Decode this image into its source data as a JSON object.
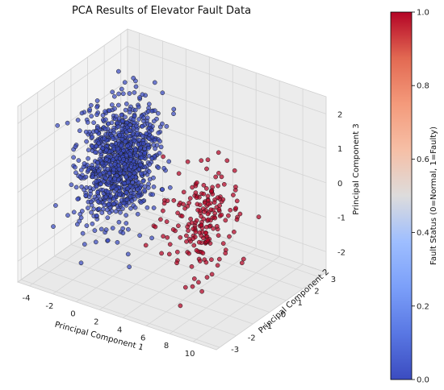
{
  "chart_data": {
    "type": "scatter",
    "projection": "3d",
    "title": "PCA Results of Elevator Fault Data",
    "xlabel": "Principal Component 1",
    "ylabel": "Principal Component 2",
    "zlabel": "Principal Component 3",
    "xlim": [
      -5,
      12
    ],
    "ylim": [
      -3.2,
      3.4
    ],
    "zlim": [
      -2.6,
      2.5
    ],
    "x_ticks": [
      "-4",
      "-2",
      "0",
      "2",
      "4",
      "6",
      "8",
      "10"
    ],
    "y_ticks": [
      "-3",
      "-2",
      "-1",
      "0",
      "1",
      "2",
      "3"
    ],
    "z_ticks": [
      "-2",
      "-1",
      "0",
      "1",
      "2"
    ],
    "grid": true,
    "colormap": "coolwarm",
    "colorbar": {
      "label": "Fault Status (0=Normal, 1=Faulty)",
      "ticks": [
        "0.0",
        "0.2",
        "0.4",
        "0.6",
        "0.8",
        "1.0"
      ],
      "range": [
        0,
        1
      ]
    },
    "series": [
      {
        "fault_status": 0,
        "color": "#3b4cc0",
        "center": [
          -1.5,
          0.5,
          0.0
        ],
        "spread": [
          1.0,
          0.9,
          0.8
        ],
        "approx_points": 1000
      },
      {
        "fault_status": 1,
        "color": "#b40426",
        "center": [
          7.0,
          -0.5,
          -0.4
        ],
        "spread": [
          1.1,
          0.9,
          0.75
        ],
        "approx_points": 200
      }
    ]
  }
}
